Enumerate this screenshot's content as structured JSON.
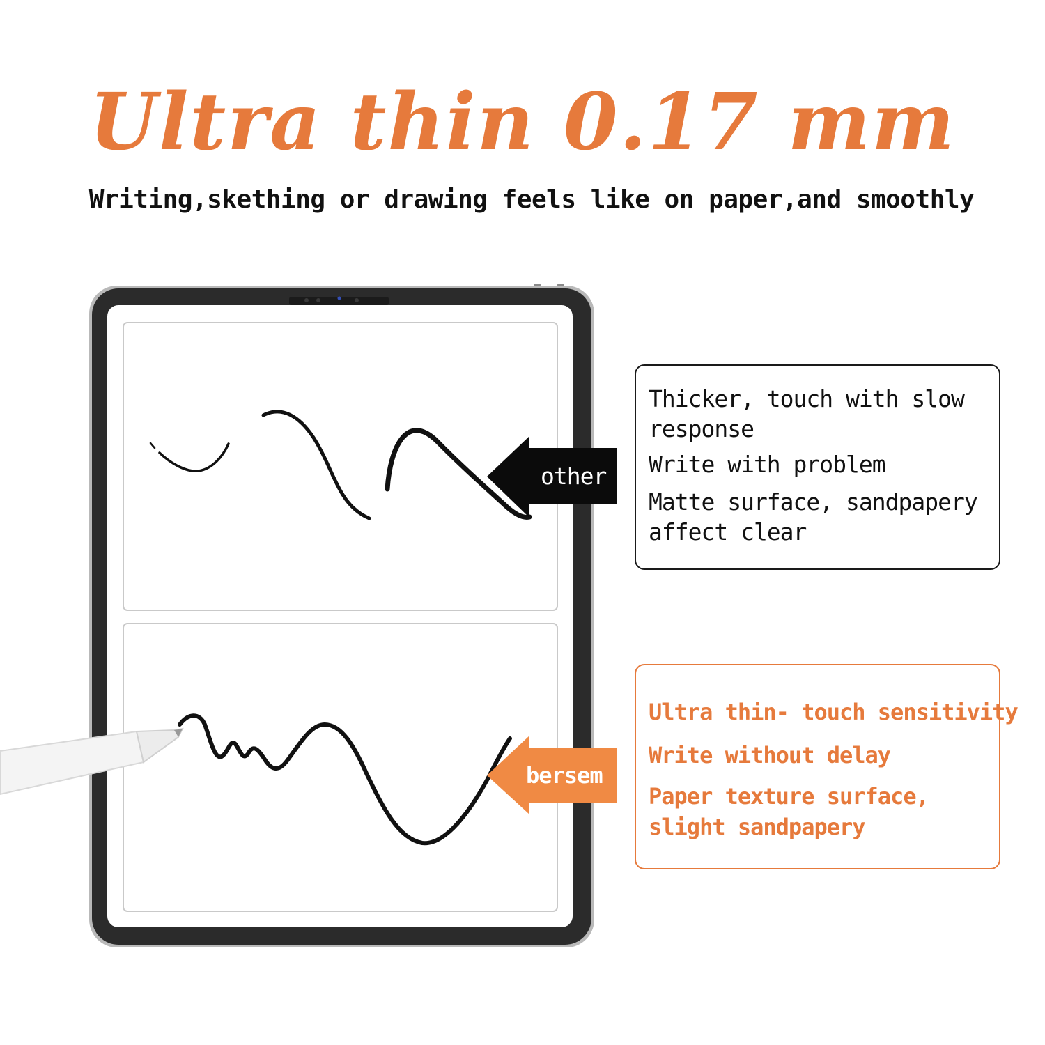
{
  "colors": {
    "accent": "#e67a3c",
    "ink": "#111111",
    "bezel": "#2a2a2a"
  },
  "header": {
    "title": "Ultra thin 0.17 mm",
    "subtitle": "Writing,skething or drawing feels like on paper,and smoothly"
  },
  "comparison": {
    "other": {
      "tag": "other",
      "lines": [
        "Thicker, touch with slow",
        "response",
        "Write with problem",
        "Matte surface, sandpapery",
        "affect clear"
      ]
    },
    "bersem": {
      "tag": "bersem",
      "lines": [
        "Ultra thin- touch sensitivity",
        "Write without delay",
        "Paper texture surface,",
        "slight sandpapery"
      ]
    }
  },
  "icons": [
    "tablet-icon",
    "stylus-icon",
    "arrow-left-icon"
  ]
}
